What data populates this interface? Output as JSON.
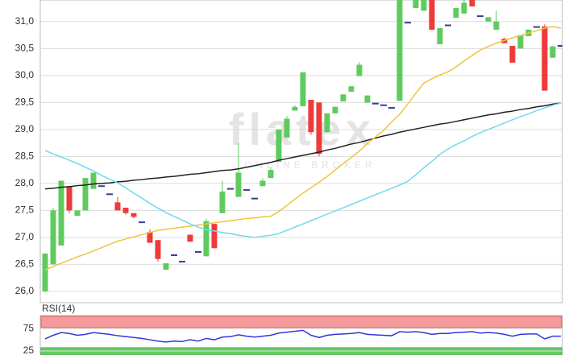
{
  "chart_data": [
    {
      "type": "candlestick",
      "watermark": "flatex",
      "watermark_subtitle": "ONLINE BROKER",
      "up_color": "#5ecb5e",
      "down_color": "#ee3a3a",
      "flat_color": "#3a3a9a",
      "open": [
        26.0,
        26.5,
        26.85,
        27.95,
        27.4,
        27.5,
        27.9,
        27.95,
        27.8,
        27.65,
        27.55,
        27.45,
        27.28,
        27.1,
        26.95,
        26.4,
        26.67,
        26.55,
        27.05,
        26.73,
        26.65,
        27.25,
        27.45,
        27.9,
        27.75,
        27.88,
        27.72,
        27.95,
        28.1,
        28.4,
        28.85,
        29.35,
        29.43,
        29.55,
        29.5,
        28.95,
        29.3,
        29.52,
        29.7,
        29.99,
        29.5,
        29.48,
        29.45,
        29.4,
        29.53,
        30.98,
        31.25,
        31.2,
        31.4,
        30.58,
        30.93,
        31.07,
        31.15,
        31.45,
        31.1,
        31.0,
        30.85,
        30.68,
        30.55,
        30.5,
        30.73,
        30.9,
        30.91,
        30.33,
        30.55
      ],
      "high": [
        26.7,
        27.55,
        28.05,
        27.95,
        27.5,
        28.1,
        28.2,
        27.95,
        27.8,
        27.75,
        27.55,
        27.45,
        27.28,
        27.15,
        26.95,
        26.52,
        26.67,
        26.55,
        27.05,
        26.73,
        27.35,
        27.25,
        28.05,
        27.9,
        28.75,
        27.88,
        27.72,
        28.1,
        28.3,
        29.0,
        29.25,
        29.45,
        30.06,
        29.55,
        29.5,
        29.3,
        29.42,
        29.65,
        29.8,
        30.25,
        29.63,
        29.48,
        29.45,
        29.4,
        31.5,
        30.98,
        31.5,
        31.45,
        31.45,
        30.88,
        30.93,
        31.25,
        31.4,
        31.45,
        31.1,
        31.08,
        31.2,
        30.7,
        30.55,
        30.75,
        30.85,
        30.9,
        30.95,
        30.54,
        30.55
      ],
      "low": [
        25.98,
        26.5,
        26.85,
        27.45,
        27.4,
        27.5,
        27.9,
        27.95,
        27.8,
        27.5,
        27.42,
        27.35,
        27.28,
        26.9,
        26.55,
        26.4,
        26.67,
        26.55,
        26.92,
        26.73,
        26.65,
        26.8,
        27.45,
        27.9,
        27.75,
        27.88,
        27.72,
        27.95,
        28.1,
        28.4,
        28.85,
        29.35,
        29.43,
        28.9,
        28.5,
        28.95,
        29.3,
        29.52,
        29.7,
        29.99,
        29.5,
        29.48,
        29.45,
        29.4,
        29.53,
        30.98,
        31.25,
        31.2,
        30.85,
        30.58,
        30.93,
        31.07,
        31.15,
        31.28,
        31.1,
        31.0,
        30.85,
        30.6,
        30.24,
        30.5,
        30.73,
        30.9,
        29.72,
        30.33,
        30.55
      ],
      "close": [
        26.7,
        27.5,
        28.05,
        27.5,
        27.5,
        28.1,
        28.2,
        27.95,
        27.8,
        27.5,
        27.45,
        27.38,
        27.28,
        26.9,
        26.6,
        26.52,
        26.67,
        26.55,
        26.92,
        26.73,
        27.3,
        26.8,
        27.85,
        27.9,
        28.2,
        27.88,
        27.72,
        28.05,
        28.25,
        29.0,
        29.2,
        29.42,
        30.06,
        28.95,
        28.55,
        29.3,
        29.42,
        29.65,
        29.8,
        30.2,
        29.63,
        29.48,
        29.45,
        29.4,
        31.4,
        30.98,
        31.45,
        31.4,
        30.85,
        30.88,
        30.93,
        31.25,
        31.35,
        31.28,
        31.1,
        31.08,
        31.0,
        30.6,
        30.24,
        30.75,
        30.85,
        30.9,
        29.72,
        30.54,
        30.55
      ],
      "series": [
        {
          "color": "#222222",
          "values": [
            27.9,
            27.91,
            27.93,
            27.94,
            27.96,
            27.97,
            27.99,
            28.0,
            28.01,
            28.03,
            28.04,
            28.06,
            28.07,
            28.09,
            28.1,
            28.12,
            28.13,
            28.15,
            28.17,
            28.18,
            28.2,
            28.22,
            28.24,
            28.25,
            28.27,
            28.3,
            28.33,
            28.36,
            28.39,
            28.43,
            28.46,
            28.49,
            28.52,
            28.55,
            28.58,
            28.62,
            28.65,
            28.69,
            28.73,
            28.76,
            28.8,
            28.84,
            28.88,
            28.91,
            28.95,
            28.98,
            29.01,
            29.04,
            29.07,
            29.1,
            29.12,
            29.15,
            29.18,
            29.21,
            29.24,
            29.27,
            29.29,
            29.32,
            29.34,
            29.37,
            29.39,
            29.42,
            29.44,
            29.47,
            29.49
          ]
        },
        {
          "color": "#f2c33c",
          "values": [
            26.4,
            26.46,
            26.52,
            26.58,
            26.64,
            26.69,
            26.75,
            26.81,
            26.87,
            26.93,
            26.97,
            27.01,
            27.05,
            27.09,
            27.13,
            27.15,
            27.17,
            27.19,
            27.21,
            27.23,
            27.25,
            27.27,
            27.29,
            27.31,
            27.33,
            27.35,
            27.36,
            27.38,
            27.39,
            27.48,
            27.59,
            27.71,
            27.82,
            27.92,
            28.02,
            28.13,
            28.25,
            28.37,
            28.48,
            28.6,
            28.74,
            28.86,
            28.98,
            29.14,
            29.28,
            29.47,
            29.67,
            29.86,
            29.94,
            30.01,
            30.07,
            30.16,
            30.27,
            30.37,
            30.47,
            30.54,
            30.6,
            30.65,
            30.7,
            30.74,
            30.79,
            30.83,
            30.88,
            30.91,
            30.88
          ]
        },
        {
          "color": "#6fd9ee",
          "values": [
            28.61,
            28.55,
            28.49,
            28.43,
            28.37,
            28.3,
            28.23,
            28.15,
            28.08,
            28.01,
            27.92,
            27.82,
            27.73,
            27.63,
            27.54,
            27.46,
            27.39,
            27.32,
            27.25,
            27.19,
            27.14,
            27.12,
            27.09,
            27.07,
            27.04,
            27.02,
            27.0,
            27.02,
            27.04,
            27.07,
            27.13,
            27.19,
            27.25,
            27.31,
            27.37,
            27.43,
            27.49,
            27.55,
            27.61,
            27.67,
            27.73,
            27.79,
            27.85,
            27.91,
            27.97,
            28.04,
            28.16,
            28.29,
            28.41,
            28.54,
            28.64,
            28.72,
            28.79,
            28.87,
            28.94,
            29.0,
            29.06,
            29.12,
            29.18,
            29.24,
            29.29,
            29.35,
            29.4,
            29.45,
            29.49
          ]
        }
      ],
      "ylim": [
        25.79,
        31.4
      ],
      "yticks": [
        {
          "value": 26,
          "label": "26,0"
        },
        {
          "value": 26.5,
          "label": "26,5"
        },
        {
          "value": 27,
          "label": "27,0"
        },
        {
          "value": 27.5,
          "label": "27,5"
        },
        {
          "value": 28,
          "label": "28,0"
        },
        {
          "value": 28.5,
          "label": "28,5"
        },
        {
          "value": 29,
          "label": "29,0"
        },
        {
          "value": 29.5,
          "label": "29,5"
        },
        {
          "value": 30,
          "label": "30,0"
        },
        {
          "value": 30.5,
          "label": "30,5"
        },
        {
          "value": 31,
          "label": "31,0"
        }
      ],
      "grid": true
    },
    {
      "type": "line",
      "title": "RSI(14)",
      "series": [
        {
          "color": "#3535d8",
          "values": [
            52,
            60,
            66,
            64,
            60,
            62,
            66,
            64,
            62,
            59,
            57,
            55,
            53,
            50,
            47,
            45,
            47,
            46,
            50,
            47,
            53,
            50,
            56,
            57,
            61,
            58,
            56,
            58,
            60,
            65,
            67,
            69,
            71,
            60,
            55,
            60,
            62,
            63,
            64,
            66,
            62,
            61,
            60,
            59,
            68,
            67,
            68,
            66,
            62,
            64,
            64,
            66,
            67,
            68,
            65,
            66,
            65,
            62,
            58,
            62,
            63,
            63,
            52,
            58,
            58
          ]
        }
      ],
      "ylim": [
        16,
        104
      ],
      "yticks": [
        25,
        75
      ],
      "grid": true
    }
  ]
}
